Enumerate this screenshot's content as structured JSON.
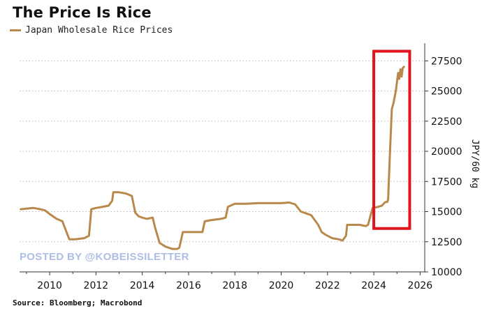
{
  "title": "The Price Is Rice",
  "legend": {
    "label": "Japan Wholesale Rice Prices",
    "color": "#b8894a"
  },
  "source": "Source: Bloomberg; Macrobond",
  "watermark": "POSTED BY @KOBEISSILETTER",
  "highlight_color": "#e0141c",
  "chart_data": {
    "type": "line",
    "title": "The Price Is Rice",
    "xlabel": "",
    "ylabel": "JPY/60 kg",
    "xlim": [
      2008.7,
      2026.2
    ],
    "ylim": [
      10000,
      28500
    ],
    "x_ticks": [
      2010,
      2012,
      2014,
      2016,
      2018,
      2020,
      2022,
      2024,
      2026
    ],
    "y_ticks": [
      10000,
      12500,
      15000,
      17500,
      20000,
      22500,
      25000,
      27500
    ],
    "grid": "horizontal dotted",
    "legend_position": "top-left",
    "highlight": {
      "type": "rectangle",
      "from_x": 2024.0,
      "to_x": 2025.55,
      "from_y": 13600,
      "to_y": 28300
    },
    "series": [
      {
        "name": "Japan Wholesale Rice Prices",
        "x": [
          2008.75,
          2009.0,
          2009.3,
          2009.6,
          2009.8,
          2010.0,
          2010.3,
          2010.55,
          2010.75,
          2010.85,
          2011.1,
          2011.5,
          2011.7,
          2011.8,
          2012.0,
          2012.3,
          2012.55,
          2012.7,
          2012.75,
          2013.0,
          2013.3,
          2013.55,
          2013.7,
          2013.85,
          2014.0,
          2014.2,
          2014.45,
          2014.55,
          2014.75,
          2015.0,
          2015.3,
          2015.5,
          2015.6,
          2015.75,
          2016.0,
          2016.4,
          2016.6,
          2016.7,
          2017.0,
          2017.4,
          2017.6,
          2017.7,
          2018.0,
          2018.5,
          2019.0,
          2019.5,
          2020.0,
          2020.35,
          2020.6,
          2020.85,
          2021.0,
          2021.3,
          2021.6,
          2021.75,
          2021.9,
          2022.2,
          2022.5,
          2022.65,
          2022.8,
          2022.85,
          2023.1,
          2023.4,
          2023.65,
          2023.75,
          2023.95,
          2024.2,
          2024.35,
          2024.45,
          2024.5,
          2024.58,
          2024.62,
          2024.7,
          2024.78,
          2024.85,
          2024.95,
          2025.05,
          2025.1,
          2025.15,
          2025.2,
          2025.25,
          2025.3
        ],
        "values": [
          15200,
          15250,
          15300,
          15200,
          15100,
          14800,
          14400,
          14200,
          13200,
          12700,
          12700,
          12800,
          13000,
          15200,
          15300,
          15400,
          15500,
          15900,
          16600,
          16600,
          16500,
          16300,
          14900,
          14600,
          14500,
          14400,
          14500,
          13700,
          12400,
          12100,
          11900,
          11900,
          12000,
          13300,
          13300,
          13300,
          13300,
          14200,
          14300,
          14400,
          14500,
          15400,
          15650,
          15650,
          15700,
          15700,
          15700,
          15750,
          15600,
          15000,
          14900,
          14700,
          13900,
          13300,
          13100,
          12800,
          12700,
          12600,
          13000,
          13900,
          13900,
          13900,
          13800,
          13900,
          15300,
          15400,
          15500,
          15700,
          15800,
          15800,
          16000,
          20000,
          23500,
          24000,
          25000,
          26500,
          26000,
          26800,
          26200,
          26900,
          27000
        ]
      }
    ]
  }
}
